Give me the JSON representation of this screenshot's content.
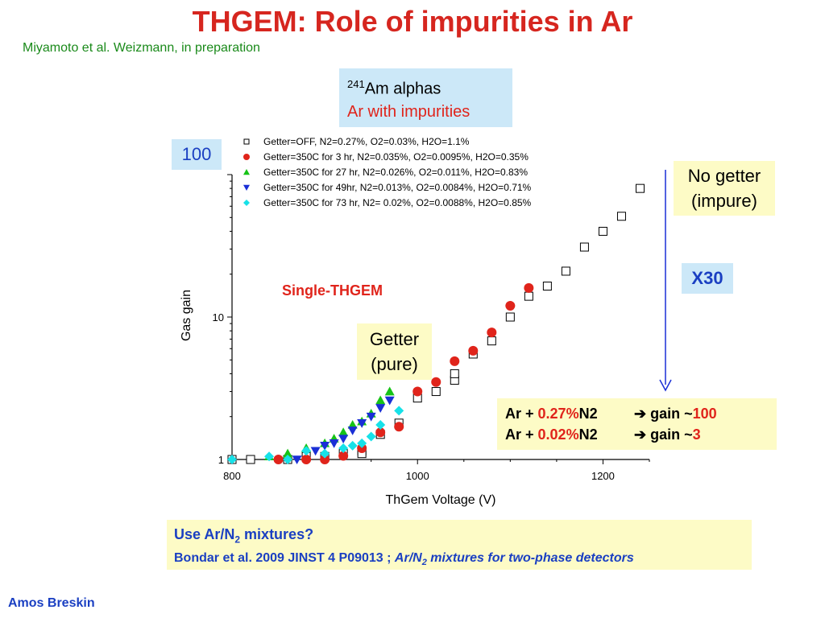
{
  "slide": {
    "title": "THGEM: Role of impurities in Ar",
    "subtitle": "Miyamoto et al. Weizmann, in preparation",
    "author": "Amos Breskin"
  },
  "source_box": {
    "line1_sup": "241",
    "line1_text": "Am alphas",
    "line2": "Ar with impurities"
  },
  "callouts": {
    "gain_100": "100",
    "no_getter_line1": "No getter",
    "no_getter_line2": "(impure)",
    "x30": "X30",
    "getter_line1": "Getter",
    "getter_line2": "(pure)"
  },
  "gain_box": {
    "row1": {
      "prefix": "Ar + ",
      "pct": "0.27%",
      "gas": "N2",
      "arrow": "➔",
      "gain_text": "gain ~",
      "gain_value": "100"
    },
    "row2": {
      "prefix": "Ar + ",
      "pct": "0.02%",
      "gas": "N2",
      "arrow": "➔",
      "gain_text": "gain ~",
      "gain_value": "3"
    }
  },
  "bottom_box": {
    "line1_a": "Use Ar/N",
    "line1_sub": "2",
    "line1_b": " mixtures?",
    "line2_a": "Bondar et al. 2009 JINST 4 P09013 ; ",
    "line2_i": "Ar/N",
    "line2_sub": "2",
    "line2_i2": " mixtures for two-phase detectors"
  },
  "colors": {
    "title": "#d6261f",
    "subtitle": "#1a8a1a",
    "blue_text": "#1a3fc2",
    "light_blue_box": "#cce8f8",
    "yellow_box": "#fdfbc6"
  },
  "chart_data": {
    "type": "scatter",
    "xlabel": "ThGem Voltage (V)",
    "ylabel": "Gas gain",
    "xlim": [
      800,
      1250
    ],
    "ylim": [
      1,
      100
    ],
    "yscale": "log",
    "x_ticks": [
      800,
      1000,
      1200
    ],
    "y_ticks": [
      1,
      10
    ],
    "annotation": "Single-THGEM",
    "legend_position": "top",
    "series": [
      {
        "name": "Getter=OFF,              N2=0.27%, O2=0.03%, H2O=1.1%",
        "marker": "square-open",
        "color": "#000000",
        "points": [
          [
            800,
            1.0
          ],
          [
            820,
            1.0
          ],
          [
            860,
            1.0
          ],
          [
            880,
            1.05
          ],
          [
            900,
            1.05
          ],
          [
            920,
            1.1
          ],
          [
            940,
            1.15
          ],
          [
            940,
            1.1
          ],
          [
            960,
            1.5
          ],
          [
            980,
            1.8
          ],
          [
            1000,
            2.7
          ],
          [
            1020,
            3.0
          ],
          [
            1040,
            3.6
          ],
          [
            1040,
            4.0
          ],
          [
            1060,
            5.5
          ],
          [
            1080,
            6.8
          ],
          [
            1100,
            10.0
          ],
          [
            1120,
            14.0
          ],
          [
            1140,
            16.5
          ],
          [
            1160,
            21.0
          ],
          [
            1180,
            31.0
          ],
          [
            1200,
            40.0
          ],
          [
            1220,
            51.0
          ],
          [
            1240,
            80.0
          ]
        ]
      },
      {
        "name": "Getter=350C for 3 hr,  N2=0.035%, O2=0.0095%, H2O=0.35%",
        "marker": "circle",
        "color": "#e0241b",
        "points": [
          [
            850,
            1.0
          ],
          [
            880,
            1.0
          ],
          [
            900,
            1.0
          ],
          [
            920,
            1.06
          ],
          [
            940,
            1.2
          ],
          [
            960,
            1.55
          ],
          [
            980,
            1.7
          ],
          [
            1000,
            3.0
          ],
          [
            1020,
            3.5
          ],
          [
            1040,
            4.9
          ],
          [
            1060,
            5.8
          ],
          [
            1080,
            7.8
          ],
          [
            1100,
            12.0
          ],
          [
            1120,
            16.0
          ]
        ]
      },
      {
        "name": "Getter=350C for 27 hr, N2=0.026%, O2=0.011%,  H2O=0.83%",
        "marker": "triangle",
        "color": "#17c317",
        "points": [
          [
            840,
            1.05
          ],
          [
            860,
            1.1
          ],
          [
            880,
            1.2
          ],
          [
            900,
            1.3
          ],
          [
            910,
            1.4
          ],
          [
            920,
            1.55
          ],
          [
            930,
            1.75
          ],
          [
            940,
            1.85
          ],
          [
            950,
            2.1
          ],
          [
            960,
            2.6
          ],
          [
            970,
            3.0
          ]
        ]
      },
      {
        "name": "Getter=350C for 49hr,  N2=0.013%, O2=0.0084%, H2O=0.71%",
        "marker": "triangle-down",
        "color": "#1a2fd6",
        "points": [
          [
            870,
            1.0
          ],
          [
            890,
            1.15
          ],
          [
            900,
            1.25
          ],
          [
            910,
            1.3
          ],
          [
            920,
            1.4
          ],
          [
            930,
            1.6
          ],
          [
            940,
            1.8
          ],
          [
            950,
            2.0
          ],
          [
            960,
            2.3
          ],
          [
            970,
            2.6
          ]
        ]
      },
      {
        "name": "Getter=350C for 73 hr, N2= 0.02%, O2=0.0088%, H2O=0.85%",
        "marker": "diamond",
        "color": "#17e1e8",
        "points": [
          [
            800,
            1.0
          ],
          [
            840,
            1.05
          ],
          [
            860,
            1.0
          ],
          [
            880,
            1.15
          ],
          [
            900,
            1.1
          ],
          [
            920,
            1.2
          ],
          [
            930,
            1.25
          ],
          [
            940,
            1.3
          ],
          [
            950,
            1.45
          ],
          [
            960,
            1.75
          ],
          [
            980,
            2.2
          ]
        ]
      }
    ]
  }
}
